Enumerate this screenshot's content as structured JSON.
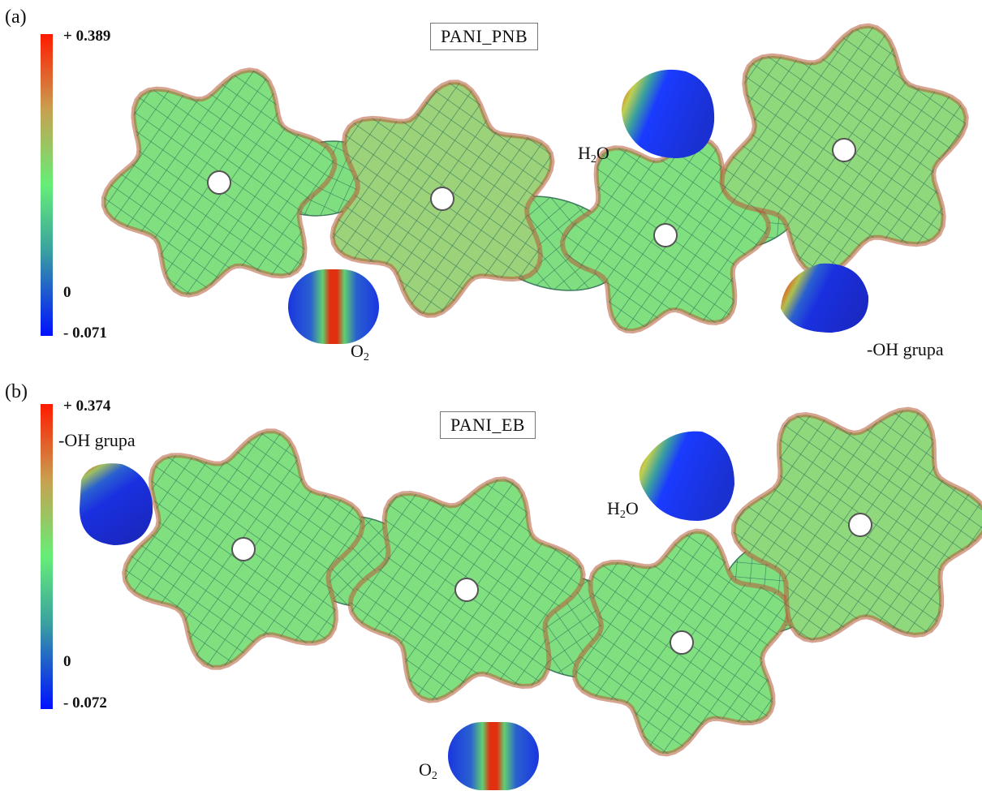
{
  "colors": {
    "max": "#ff1a00",
    "mid": "#66ee77",
    "zero": "#1a3bd9",
    "min": "#0010ff",
    "mesh": "#2a6a5a"
  },
  "panels": [
    {
      "label": "(a)",
      "title": "PANI_PNB",
      "scale": {
        "max": "+ 0.389",
        "zero": "0",
        "min": "- 0.071"
      },
      "molecules": {
        "water": "H2O",
        "oxygen": "O2",
        "hydroxyl": "-OH grupa"
      }
    },
    {
      "label": "(b)",
      "title": "PANI_EB",
      "scale": {
        "max": "+ 0.374",
        "zero": "0",
        "min": "- 0.072"
      },
      "molecules": {
        "water": "H2O",
        "oxygen": "O2",
        "hydroxyl": "-OH grupa"
      }
    }
  ]
}
